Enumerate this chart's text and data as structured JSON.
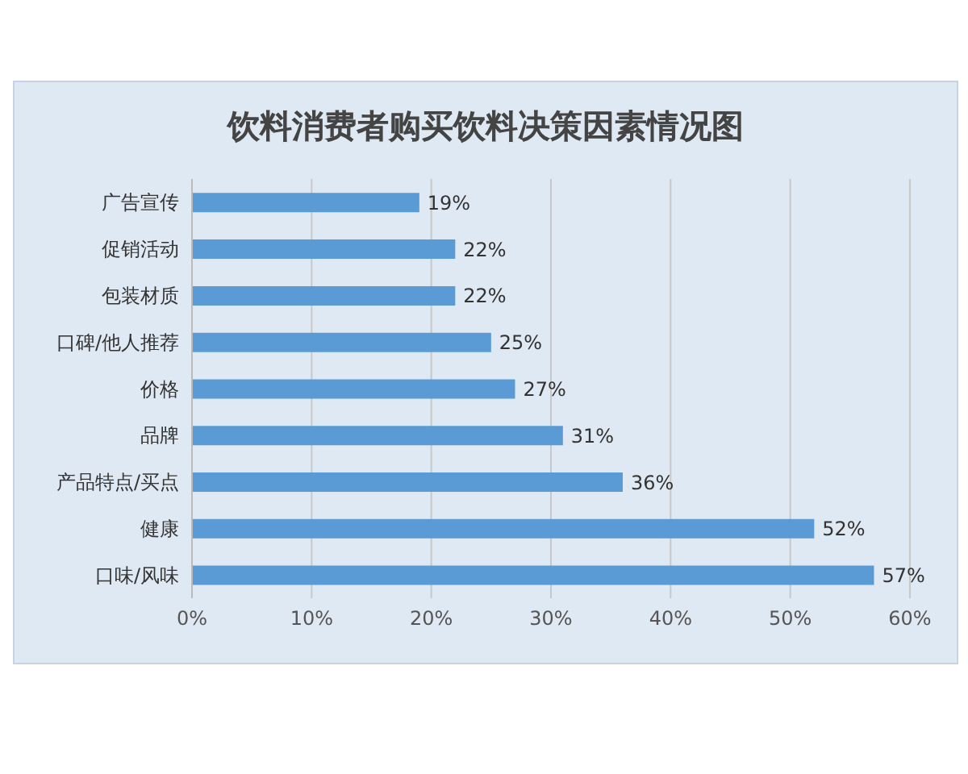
{
  "chart_data": {
    "type": "bar",
    "orientation": "horizontal",
    "title": "饮料消费者购买饮料决策因素情况图",
    "categories": [
      "广告宣传",
      "促销活动",
      "包装材质",
      "口碑/他人推荐",
      "价格",
      "品牌",
      "产品特点/买点",
      "健康",
      "口味/风味"
    ],
    "values": [
      19,
      22,
      22,
      25,
      27,
      31,
      36,
      52,
      57
    ],
    "value_labels": [
      "19%",
      "22%",
      "22%",
      "25%",
      "27%",
      "31%",
      "36%",
      "52%",
      "57%"
    ],
    "color": "#5b9bd5",
    "xlim": [
      0,
      60
    ],
    "xticks": [
      {
        "value": 0,
        "label": "0%"
      },
      {
        "value": 10,
        "label": "10%"
      },
      {
        "value": 20,
        "label": "20%"
      },
      {
        "value": 30,
        "label": "30%"
      },
      {
        "value": 40,
        "label": "40%"
      },
      {
        "value": 50,
        "label": "50%"
      },
      {
        "value": 60,
        "label": "60%"
      }
    ],
    "grid": "x"
  }
}
